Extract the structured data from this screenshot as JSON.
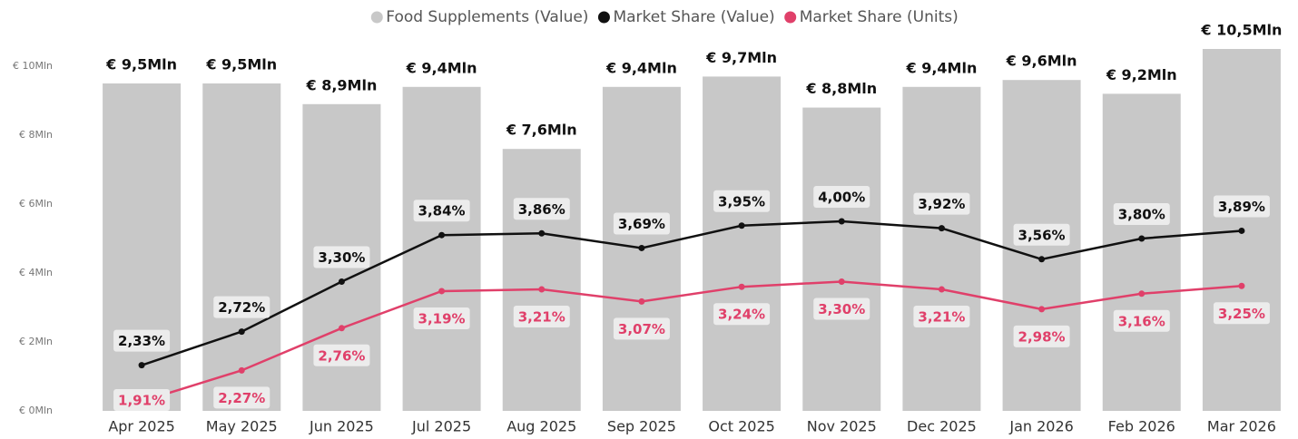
{
  "chart_data": {
    "type": "bar-line",
    "categories": [
      "Apr 2025",
      "May 2025",
      "Jun 2025",
      "Jul 2025",
      "Aug 2025",
      "Sep 2025",
      "Oct 2025",
      "Nov 2025",
      "Dec 2025",
      "Jan 2026",
      "Feb 2026",
      "Mar 2026"
    ],
    "ylim": [
      0,
      10.5
    ],
    "yticks": [
      {
        "value": 0,
        "label": "€ 0Mln"
      },
      {
        "value": 2,
        "label": "€ 2Mln"
      },
      {
        "value": 4,
        "label": "€ 4Mln"
      },
      {
        "value": 6,
        "label": "€ 6Mln"
      },
      {
        "value": 8,
        "label": "€ 8Mln"
      },
      {
        "value": 10,
        "label": "€ 10Mln"
      }
    ],
    "y2lim": [
      1.8,
      6
    ],
    "legend": "top",
    "series": [
      {
        "name": "Food Supplements (Value)",
        "type": "bar",
        "color": "#c8c8c8",
        "values": [
          9.5,
          9.5,
          8.9,
          9.4,
          7.6,
          9.4,
          9.7,
          8.8,
          9.4,
          9.6,
          9.2,
          10.5
        ],
        "value_labels": [
          "€ 9,5Mln",
          "€ 9,5Mln",
          "€ 8,9Mln",
          "€ 9,4Mln",
          "€ 7,6Mln",
          "€ 9,4Mln",
          "€ 9,7Mln",
          "€ 8,8Mln",
          "€ 9,4Mln",
          "€ 9,6Mln",
          "€ 9,2Mln",
          "€ 10,5Mln"
        ]
      },
      {
        "name": "Market Share (Value)",
        "type": "line",
        "axis": "y2",
        "color": "#111111",
        "values": [
          2.33,
          2.72,
          3.3,
          3.84,
          3.86,
          3.69,
          3.95,
          4.0,
          3.92,
          3.56,
          3.8,
          3.89
        ],
        "value_labels": [
          "2,33%",
          "2,72%",
          "3,30%",
          "3,84%",
          "3,86%",
          "3,69%",
          "3,95%",
          "4,00%",
          "3,92%",
          "3,56%",
          "3,80%",
          "3,89%"
        ]
      },
      {
        "name": "Market Share (Units)",
        "type": "line",
        "axis": "y2",
        "color": "#e0406a",
        "values": [
          1.91,
          2.27,
          2.76,
          3.19,
          3.21,
          3.07,
          3.24,
          3.3,
          3.21,
          2.98,
          3.16,
          3.25
        ],
        "value_labels": [
          "1,91%",
          "2,27%",
          "2,76%",
          "3,19%",
          "3,21%",
          "3,07%",
          "3,24%",
          "3,30%",
          "3,21%",
          "2,98%",
          "3,16%",
          "3,25%"
        ]
      }
    ]
  }
}
